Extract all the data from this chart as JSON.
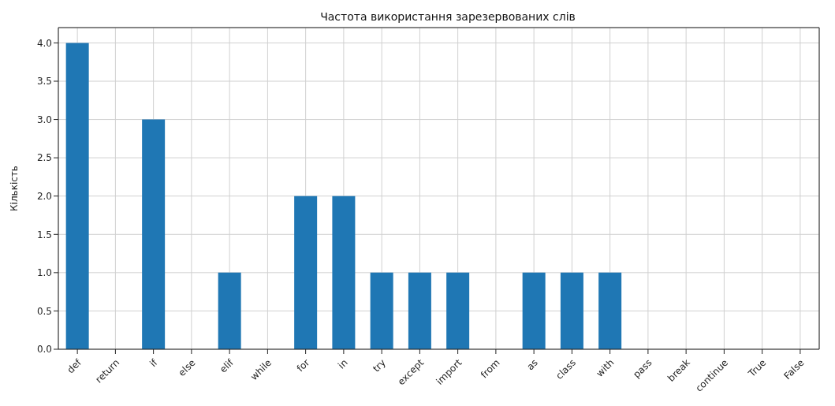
{
  "chart_data": {
    "type": "bar",
    "title": "Частота використання зарезервованих слів",
    "ylabel": "Кількість",
    "categories": [
      "def",
      "return",
      "if",
      "else",
      "elif",
      "while",
      "for",
      "in",
      "try",
      "except",
      "import",
      "from",
      "as",
      "class",
      "with",
      "pass",
      "break",
      "continue",
      "True",
      "False"
    ],
    "values": [
      4,
      0,
      3,
      0,
      1,
      0,
      2,
      2,
      1,
      1,
      1,
      0,
      1,
      1,
      1,
      0,
      0,
      0,
      0,
      0
    ],
    "color": "#1f77b4",
    "ylim": [
      0,
      4.2
    ],
    "yticks": [
      {
        "value": 0,
        "label": "0.0"
      },
      {
        "value": 0.5,
        "label": "0.5"
      },
      {
        "value": 1,
        "label": "1.0"
      },
      {
        "value": 1.5,
        "label": "1.5"
      },
      {
        "value": 2,
        "label": "2.0"
      },
      {
        "value": 2.5,
        "label": "2.5"
      },
      {
        "value": 3,
        "label": "3.0"
      },
      {
        "value": 3.5,
        "label": "3.5"
      },
      {
        "value": 4,
        "label": "4.0"
      }
    ],
    "grid": true
  }
}
